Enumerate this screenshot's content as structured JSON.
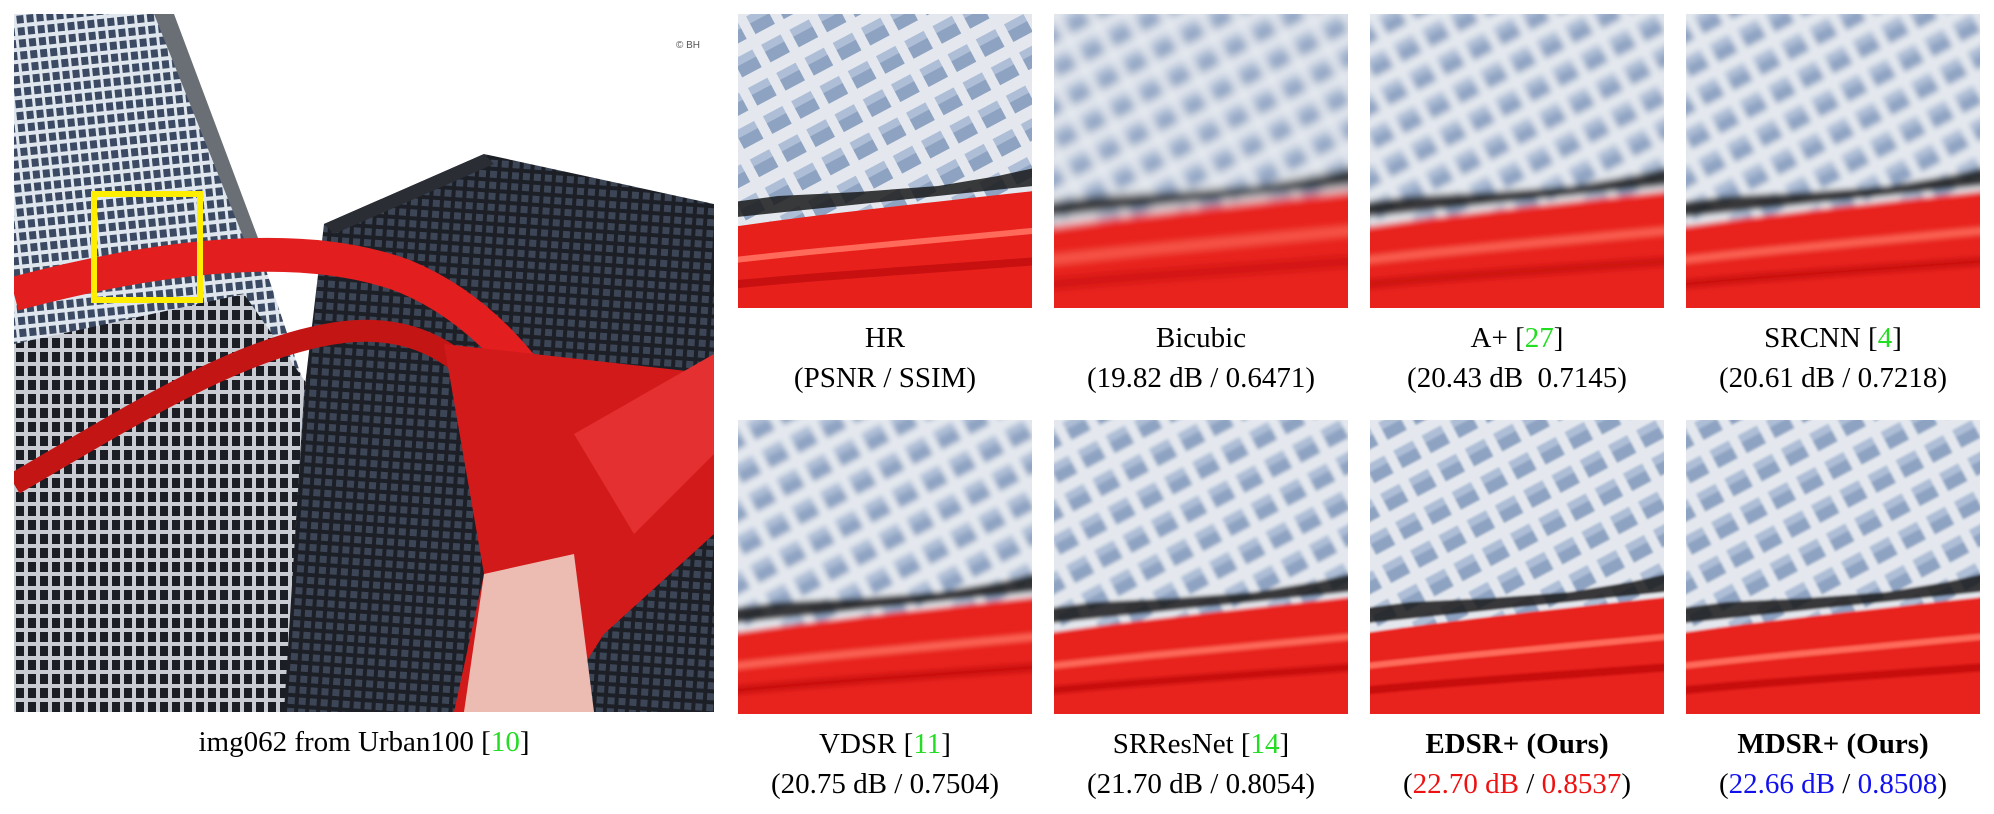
{
  "main": {
    "caption_text": "img062 from Urban100 [",
    "caption_ref": "10",
    "caption_close": "]",
    "watermark": "© BH",
    "roi_color": "#ffee00"
  },
  "crops": [
    {
      "method": "HR",
      "ref": "",
      "bold": false,
      "metric_open": "(",
      "psnr": "PSNR",
      "sep": " / ",
      "ssim": "SSIM",
      "metric_close": ")",
      "highlight": "",
      "blur": 0
    },
    {
      "method": "Bicubic",
      "ref": "",
      "bold": false,
      "metric_open": "(",
      "psnr": "19.82 dB",
      "sep": " / ",
      "ssim": "0.6471",
      "metric_close": ")",
      "highlight": "",
      "blur": 4.5
    },
    {
      "method": "A+",
      "ref": "27",
      "bold": false,
      "metric_open": "(",
      "psnr": "20.43 dB",
      "sep": "  ",
      "ssim": "0.7145",
      "metric_close": ")",
      "highlight": "",
      "blur": 3.2
    },
    {
      "method": "SRCNN",
      "ref": "4",
      "bold": false,
      "metric_open": "(",
      "psnr": "20.61 dB",
      "sep": " / ",
      "ssim": "0.7218",
      "metric_close": ")",
      "highlight": "",
      "blur": 3.0
    },
    {
      "method": "VDSR",
      "ref": "11",
      "bold": false,
      "metric_open": "(",
      "psnr": "20.75 dB",
      "sep": " / ",
      "ssim": "0.7504",
      "metric_close": ")",
      "highlight": "",
      "blur": 2.6
    },
    {
      "method": "SRResNet",
      "ref": "14",
      "bold": false,
      "metric_open": "(",
      "psnr": "21.70 dB",
      "sep": " / ",
      "ssim": "0.8054",
      "metric_close": ")",
      "highlight": "",
      "blur": 1.8
    },
    {
      "method": "EDSR+ (Ours)",
      "ref": "",
      "bold": true,
      "metric_open": "(",
      "psnr": "22.70 dB",
      "sep": " / ",
      "ssim": "0.8537",
      "metric_close": ")",
      "highlight": "red",
      "blur": 1.1
    },
    {
      "method": "MDSR+ (Ours)",
      "ref": "",
      "bold": true,
      "metric_open": "(",
      "psnr": "22.66 dB",
      "sep": " / ",
      "ssim": "0.8508",
      "metric_close": ")",
      "highlight": "blue",
      "blur": 1.2
    }
  ],
  "colors": {
    "citation": "#22dd22",
    "best": "#ee1111",
    "second": "#1111ee",
    "sculpture": "#e21e1e"
  }
}
